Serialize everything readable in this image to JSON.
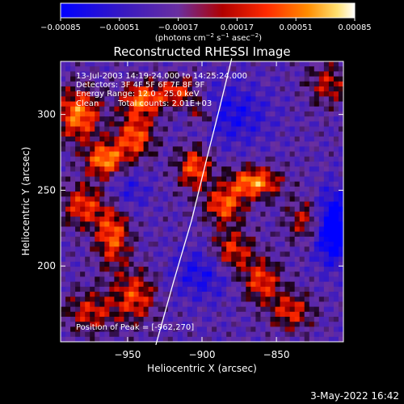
{
  "chart_data": {
    "type": "heatmap",
    "title": "Reconstructed RHESSI Image",
    "xlabel": "Heliocentric X (arcsec)",
    "ylabel": "Heliocentric Y (arcsec)",
    "xlim": [
      -995,
      -805
    ],
    "ylim": [
      150,
      335
    ],
    "xticks": [
      {
        "value": -950,
        "label": "−950"
      },
      {
        "value": -900,
        "label": "−900"
      },
      {
        "value": -850,
        "label": "−850"
      }
    ],
    "yticks": [
      {
        "value": 200,
        "label": "200"
      },
      {
        "value": 250,
        "label": "250"
      },
      {
        "value": 300,
        "label": "300"
      }
    ],
    "colorbar": {
      "range": [
        -0.00085,
        0.00085
      ],
      "ticks": [
        {
          "value": -0.00085,
          "label": "−0.00085"
        },
        {
          "value": -0.00051,
          "label": "−0.00051"
        },
        {
          "value": -0.00017,
          "label": "−0.00017"
        },
        {
          "value": 0.00017,
          "label": "0.00017"
        },
        {
          "value": 0.00051,
          "label": "0.00051"
        },
        {
          "value": 0.00085,
          "label": "0.00085"
        }
      ],
      "unit_main": "(photons cm",
      "unit_exp1": "−2",
      "unit_mid1": " s",
      "unit_exp2": "−1",
      "unit_mid2": " asec",
      "unit_exp3": "−2",
      "unit_end": ")"
    },
    "annotations": {
      "time": "13-Jul-2003 14:19:24.000 to 14:25:24.000",
      "detectors": "Detectors: 3F 4F 5F 6F 7F 8F 9F",
      "energy": "Energy Range: 12.0 - 25.0 keV",
      "clean": "Clean",
      "counts": "Total counts: 2.01E+03",
      "peak": "Position of Peak = [-962,270]"
    },
    "limb": [
      [
        -931,
        148
      ],
      [
        -919,
        190
      ],
      [
        -907,
        230
      ],
      [
        -897,
        270
      ],
      [
        -888,
        305
      ],
      [
        -880,
        337
      ]
    ],
    "blobs": [
      {
        "x": -983,
        "y": 300,
        "amp": 0.0008,
        "sx": 10,
        "sy": 12
      },
      {
        "x": -965,
        "y": 270,
        "amp": 0.00085,
        "sx": 9,
        "sy": 8
      },
      {
        "x": -945,
        "y": 285,
        "amp": 0.0007,
        "sx": 9,
        "sy": 10
      },
      {
        "x": -940,
        "y": 310,
        "amp": 0.00075,
        "sx": 10,
        "sy": 8
      },
      {
        "x": -915,
        "y": 315,
        "amp": 0.0006,
        "sx": 9,
        "sy": 7
      },
      {
        "x": -905,
        "y": 265,
        "amp": 0.0007,
        "sx": 8,
        "sy": 10
      },
      {
        "x": -980,
        "y": 240,
        "amp": 0.0006,
        "sx": 10,
        "sy": 10
      },
      {
        "x": -960,
        "y": 220,
        "amp": 0.0007,
        "sx": 8,
        "sy": 14
      },
      {
        "x": -975,
        "y": 170,
        "amp": 0.0005,
        "sx": 12,
        "sy": 10
      },
      {
        "x": -945,
        "y": 180,
        "amp": 0.0006,
        "sx": 10,
        "sy": 12
      },
      {
        "x": -865,
        "y": 255,
        "amp": 0.00085,
        "sx": 12,
        "sy": 7
      },
      {
        "x": -885,
        "y": 240,
        "amp": 0.0007,
        "sx": 9,
        "sy": 8
      },
      {
        "x": -880,
        "y": 210,
        "amp": 0.0006,
        "sx": 10,
        "sy": 10
      },
      {
        "x": -860,
        "y": 190,
        "amp": 0.0006,
        "sx": 9,
        "sy": 10
      },
      {
        "x": -840,
        "y": 170,
        "amp": 0.00055,
        "sx": 10,
        "sy": 9
      },
      {
        "x": -830,
        "y": 230,
        "amp": 0.0005,
        "sx": 9,
        "sy": 10
      },
      {
        "x": -815,
        "y": 320,
        "amp": 0.00045,
        "sx": 10,
        "sy": 10
      },
      {
        "x": -900,
        "y": 300,
        "amp": 0.0005,
        "sx": 6,
        "sy": 6
      },
      {
        "x": -812,
        "y": 225,
        "amp": -0.00085,
        "sx": 9,
        "sy": 16
      },
      {
        "x": -900,
        "y": 195,
        "amp": -0.0004,
        "sx": 14,
        "sy": 12
      },
      {
        "x": -880,
        "y": 300,
        "amp": -0.0004,
        "sx": 18,
        "sy": 14
      },
      {
        "x": -950,
        "y": 250,
        "amp": -0.0003,
        "sx": 10,
        "sy": 10
      }
    ],
    "background": -0.00028
  },
  "footer": {
    "date": "3-May-2022 16:42"
  }
}
